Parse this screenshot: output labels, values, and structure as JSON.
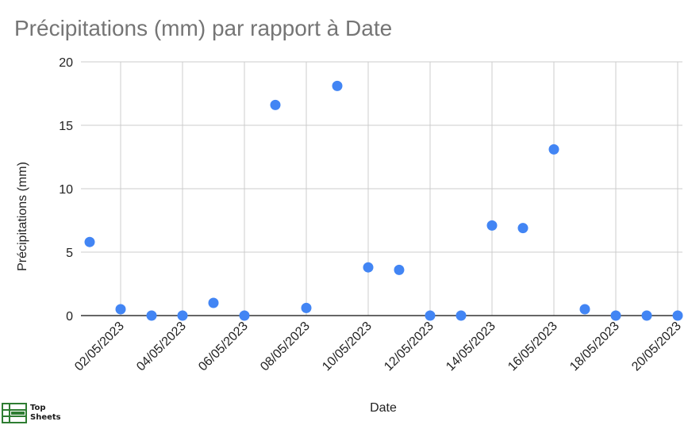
{
  "chart_data": {
    "type": "scatter",
    "title": "Précipitations (mm) par rapport à Date",
    "xlabel": "Date",
    "ylabel": "Précipitations (mm)",
    "ylim": [
      0,
      20
    ],
    "yticks": [
      "0",
      "5",
      "10",
      "15",
      "20"
    ],
    "xticks": [
      "02/05/2023",
      "04/05/2023",
      "06/05/2023",
      "08/05/2023",
      "10/05/2023",
      "12/05/2023",
      "14/05/2023",
      "16/05/2023",
      "18/05/2023",
      "20/05/2023"
    ],
    "grid": true,
    "color": "#4285f4",
    "points": [
      {
        "x": "01/05/2023",
        "y": 5.8
      },
      {
        "x": "02/05/2023",
        "y": 0.5
      },
      {
        "x": "03/05/2023",
        "y": 0
      },
      {
        "x": "04/05/2023",
        "y": 0
      },
      {
        "x": "05/05/2023",
        "y": 1.0
      },
      {
        "x": "06/05/2023",
        "y": 0
      },
      {
        "x": "07/05/2023",
        "y": 16.6
      },
      {
        "x": "08/05/2023",
        "y": 0.6
      },
      {
        "x": "09/05/2023",
        "y": 18.1
      },
      {
        "x": "10/05/2023",
        "y": 3.8
      },
      {
        "x": "11/05/2023",
        "y": 3.6
      },
      {
        "x": "12/05/2023",
        "y": 0
      },
      {
        "x": "13/05/2023",
        "y": 0
      },
      {
        "x": "14/05/2023",
        "y": 7.1
      },
      {
        "x": "15/05/2023",
        "y": 6.9
      },
      {
        "x": "16/05/2023",
        "y": 13.1
      },
      {
        "x": "17/05/2023",
        "y": 0.5
      },
      {
        "x": "18/05/2023",
        "y": 0
      },
      {
        "x": "19/05/2023",
        "y": 0
      },
      {
        "x": "20/05/2023",
        "y": 0
      }
    ]
  },
  "logo": {
    "line1": "Top",
    "line2": "Sheets",
    "icon": "spreadsheet-icon"
  }
}
